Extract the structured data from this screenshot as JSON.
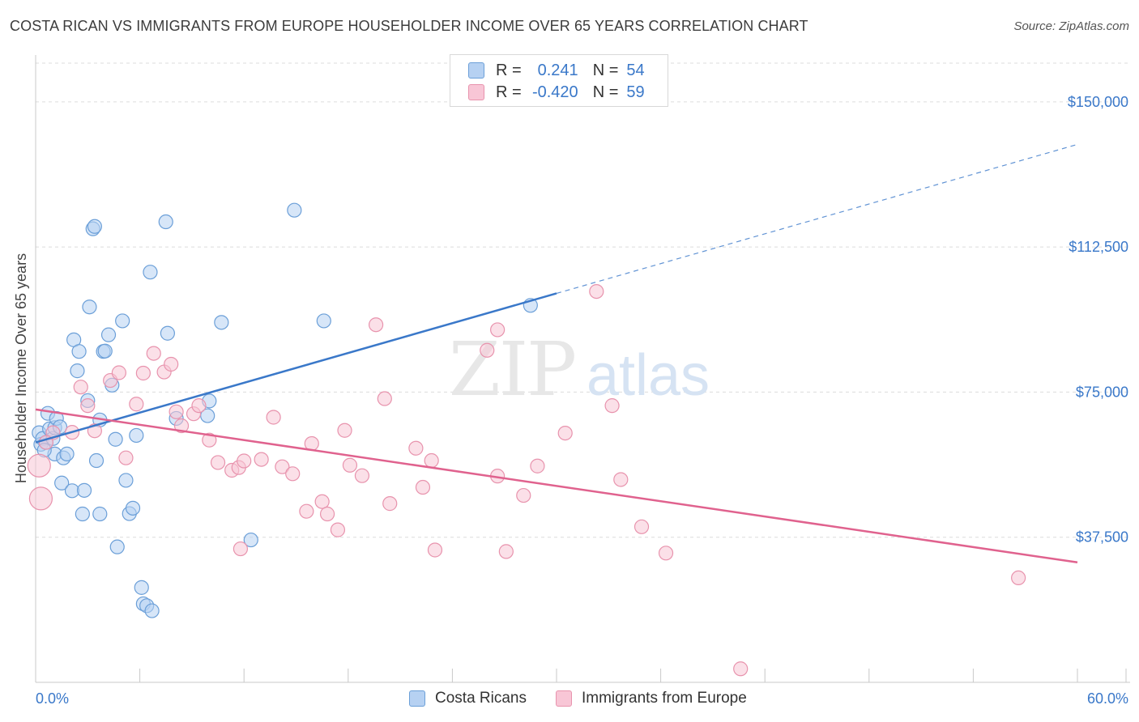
{
  "title": "COSTA RICAN VS IMMIGRANTS FROM EUROPE HOUSEHOLDER INCOME OVER 65 YEARS CORRELATION CHART",
  "source": "Source: ZipAtlas.com",
  "watermark": {
    "zip": "ZIP",
    "atlas": "atlas"
  },
  "legend": {
    "r_label": "R =",
    "n_label": "N =",
    "rows": [
      {
        "r": "0.241",
        "n": "54",
        "fill": "#b6d1f2",
        "stroke": "#6b9fd8"
      },
      {
        "r": "-0.420",
        "n": "59",
        "fill": "#f8c6d6",
        "stroke": "#e893ad"
      }
    ]
  },
  "bottom_legend": [
    "Costa Ricans",
    "Immigrants from Europe"
  ],
  "chart_data": {
    "type": "scatter",
    "title": "COSTA RICAN VS IMMIGRANTS FROM EUROPE HOUSEHOLDER INCOME OVER 65 YEARS CORRELATION CHART",
    "xlabel": "",
    "ylabel": "Householder Income Over 65 years",
    "xlim": [
      0,
      60
    ],
    "ylim": [
      0,
      160000
    ],
    "x_tick_labels": [
      "0.0%",
      "60.0%"
    ],
    "y_ticks": [
      37500,
      75000,
      112500,
      150000
    ],
    "y_tick_labels": [
      "$37,500",
      "$75,000",
      "$112,500",
      "$150,000"
    ],
    "grid": "horizontal dashed",
    "legend_position": "top-center",
    "series": [
      {
        "name": "Costa Ricans",
        "color": "#3a78c9",
        "fill": "#b6d1f2",
        "points": [
          [
            0.2,
            64500
          ],
          [
            0.3,
            61500
          ],
          [
            0.4,
            63000
          ],
          [
            0.6,
            62000
          ],
          [
            0.7,
            69500
          ],
          [
            0.8,
            65500
          ],
          [
            1.0,
            63000
          ],
          [
            1.1,
            59000
          ],
          [
            1.1,
            65800
          ],
          [
            1.2,
            68200
          ],
          [
            1.4,
            66000
          ],
          [
            1.5,
            51500
          ],
          [
            1.6,
            58000
          ],
          [
            1.8,
            59000
          ],
          [
            2.1,
            49500
          ],
          [
            2.2,
            88500
          ],
          [
            2.4,
            80500
          ],
          [
            2.5,
            85500
          ],
          [
            2.7,
            43500
          ],
          [
            2.8,
            49600
          ],
          [
            3.0,
            72800
          ],
          [
            3.1,
            97000
          ],
          [
            3.3,
            117200
          ],
          [
            3.4,
            117800
          ],
          [
            3.5,
            57300
          ],
          [
            3.7,
            43500
          ],
          [
            3.7,
            67800
          ],
          [
            3.9,
            85500
          ],
          [
            4.0,
            85600
          ],
          [
            4.2,
            89800
          ],
          [
            4.4,
            76800
          ],
          [
            4.6,
            62800
          ],
          [
            4.7,
            35000
          ],
          [
            5.0,
            93400
          ],
          [
            5.2,
            52200
          ],
          [
            5.4,
            43600
          ],
          [
            5.6,
            45000
          ],
          [
            5.8,
            63800
          ],
          [
            6.1,
            24500
          ],
          [
            6.2,
            20300
          ],
          [
            6.4,
            19800
          ],
          [
            6.7,
            18500
          ],
          [
            6.6,
            106000
          ],
          [
            7.5,
            119000
          ],
          [
            7.6,
            90200
          ],
          [
            8.1,
            68200
          ],
          [
            9.9,
            68900
          ],
          [
            10.0,
            72700
          ],
          [
            10.7,
            93000
          ],
          [
            12.4,
            36800
          ],
          [
            14.9,
            122000
          ],
          [
            16.6,
            93400
          ],
          [
            28.5,
            97400
          ],
          [
            0.5,
            60000
          ]
        ]
      },
      {
        "name": "Immigrants from Europe",
        "color": "#e0628e",
        "fill": "#f8c6d6",
        "points": [
          [
            0.2,
            56000
          ],
          [
            0.3,
            47500
          ],
          [
            1.0,
            64500
          ],
          [
            2.1,
            64600
          ],
          [
            2.6,
            76300
          ],
          [
            3.0,
            71500
          ],
          [
            3.4,
            65000
          ],
          [
            4.3,
            78000
          ],
          [
            4.8,
            80000
          ],
          [
            5.2,
            58000
          ],
          [
            5.8,
            71900
          ],
          [
            6.2,
            79900
          ],
          [
            6.8,
            85000
          ],
          [
            7.4,
            80200
          ],
          [
            7.8,
            82200
          ],
          [
            8.1,
            69900
          ],
          [
            8.4,
            66300
          ],
          [
            9.1,
            69400
          ],
          [
            9.4,
            71500
          ],
          [
            10.0,
            62600
          ],
          [
            10.5,
            56800
          ],
          [
            11.3,
            54800
          ],
          [
            11.7,
            55500
          ],
          [
            11.8,
            34500
          ],
          [
            12.0,
            57200
          ],
          [
            13.0,
            57600
          ],
          [
            13.7,
            68500
          ],
          [
            14.2,
            55700
          ],
          [
            14.8,
            53900
          ],
          [
            15.6,
            44200
          ],
          [
            15.9,
            61700
          ],
          [
            16.5,
            46700
          ],
          [
            16.8,
            43500
          ],
          [
            17.4,
            39400
          ],
          [
            17.8,
            65100
          ],
          [
            18.1,
            56100
          ],
          [
            18.8,
            53400
          ],
          [
            19.6,
            92400
          ],
          [
            20.1,
            73300
          ],
          [
            20.4,
            46200
          ],
          [
            21.9,
            60500
          ],
          [
            22.3,
            50400
          ],
          [
            22.8,
            57300
          ],
          [
            23.0,
            34200
          ],
          [
            26.0,
            85800
          ],
          [
            26.6,
            53300
          ],
          [
            26.6,
            91100
          ],
          [
            27.1,
            33800
          ],
          [
            28.1,
            48300
          ],
          [
            28.9,
            55900
          ],
          [
            30.5,
            64400
          ],
          [
            32.3,
            101000
          ],
          [
            33.2,
            71500
          ],
          [
            33.7,
            52400
          ],
          [
            34.9,
            40200
          ],
          [
            36.3,
            33400
          ],
          [
            40.6,
            3500
          ],
          [
            56.6,
            27000
          ],
          [
            0.6,
            62000
          ]
        ]
      }
    ],
    "trend_lines": [
      {
        "series": "Costa Ricans",
        "solid": [
          [
            0,
            62000
          ],
          [
            30,
            100500
          ]
        ],
        "dashed_to": [
          60,
          139000
        ]
      },
      {
        "series": "Immigrants from Europe",
        "solid": [
          [
            0,
            70500
          ],
          [
            60,
            31000
          ]
        ]
      }
    ]
  }
}
